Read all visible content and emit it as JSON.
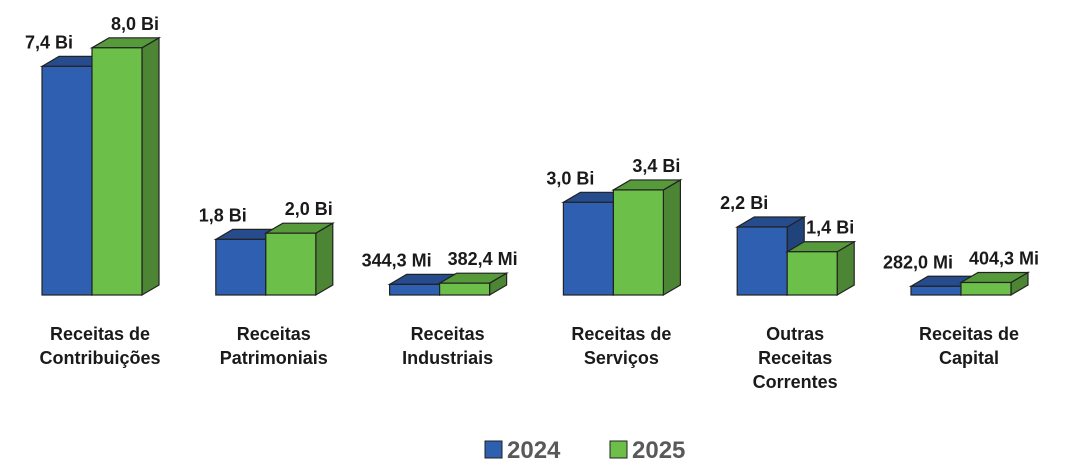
{
  "chart_data": {
    "type": "bar3d",
    "categories": [
      "Receitas de Contribuições",
      "Receitas Patrimoniais",
      "Receitas Industriais",
      "Receitas de Serviços",
      "Outras Receitas Correntes",
      "Receitas de Capital"
    ],
    "series": [
      {
        "name": "2024",
        "color": "#2f5fb0",
        "values": [
          7.4,
          1.8,
          0.3443,
          3.0,
          2.2,
          0.282
        ],
        "value_labels": [
          "7,4 Bi",
          "1,8 Bi",
          "344,3 Mi",
          "3,0 Bi",
          "2,2 Bi",
          "282,0 Mi"
        ]
      },
      {
        "name": "2025",
        "color": "#6cc04a",
        "values": [
          8.0,
          2.0,
          0.3824,
          3.4,
          1.4,
          0.4043
        ],
        "value_labels": [
          "8,0 Bi",
          "2,0 Bi",
          "382,4 Mi",
          "3,4 Bi",
          "1,4 Bi",
          "404,3 Mi"
        ]
      }
    ],
    "legend": "bottom"
  }
}
